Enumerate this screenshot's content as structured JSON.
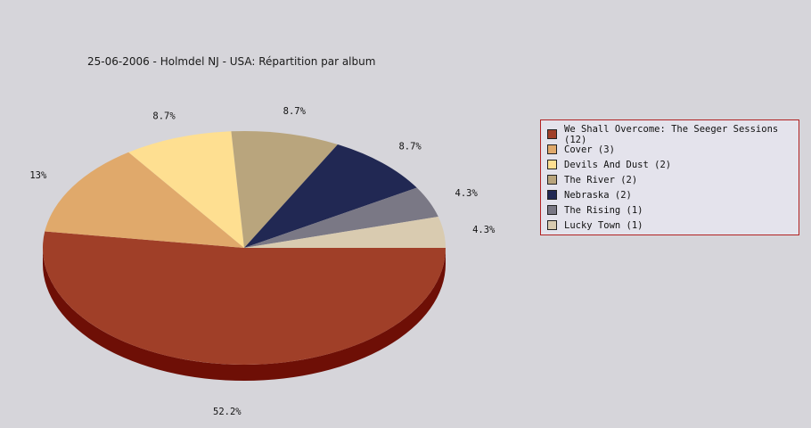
{
  "chart_data": {
    "type": "pie",
    "title": "25-06-2006 - Holmdel NJ - USA:  Répartition par album",
    "slices": [
      {
        "name": "We Shall Overcome: The Seeger Sessions",
        "count": 12,
        "value": 52.2,
        "label": "52.2%",
        "color": "#a03f28",
        "side_color": "#6e0f06",
        "legend": "We Shall Overcome: The Seeger Sessions (12)"
      },
      {
        "name": "Cover",
        "count": 3,
        "value": 13.0,
        "label": "13%",
        "color": "#e0a96b",
        "side_color": "#a0703e",
        "legend": "Cover (3)"
      },
      {
        "name": "Devils And Dust",
        "count": 2,
        "value": 8.7,
        "label": "8.7%",
        "color": "#fedf91",
        "side_color": "#b59a58",
        "legend": "Devils And Dust (2)"
      },
      {
        "name": "The River",
        "count": 2,
        "value": 8.7,
        "label": "8.7%",
        "color": "#b9a57d",
        "side_color": "#7e6e50",
        "legend": "The River (2)"
      },
      {
        "name": "Nebraska",
        "count": 2,
        "value": 8.7,
        "label": "8.7%",
        "color": "#212853",
        "side_color": "#10142e",
        "legend": "Nebraska (2)"
      },
      {
        "name": "The Rising",
        "count": 1,
        "value": 4.3,
        "label": "4.3%",
        "color": "#7a7885",
        "side_color": "#4d4b55",
        "legend": "The Rising (1)"
      },
      {
        "name": "Lucky Town",
        "count": 1,
        "value": 4.3,
        "label": "4.3%",
        "color": "#d9cbb0",
        "side_color": "#9b8e75",
        "legend": "Lucky Town (1)"
      }
    ],
    "legend_position": "right"
  }
}
